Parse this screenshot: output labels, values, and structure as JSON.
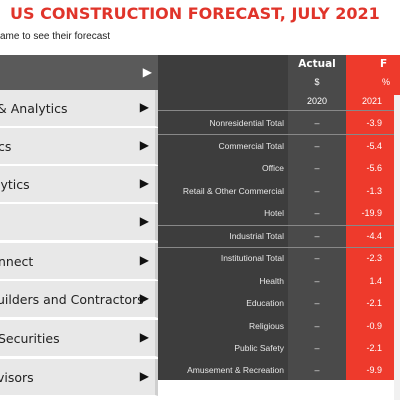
{
  "header": {
    "title": "US CONSTRUCTION FORECAST, JULY 2021",
    "subtitle": "ame to see their forecast"
  },
  "nav": {
    "items": [
      {
        "label": "& Analytics"
      },
      {
        "label": "cs"
      },
      {
        "label": "lytics"
      },
      {
        "label": ""
      },
      {
        "label": "nnect"
      },
      {
        "label": "uilders and Contractors"
      },
      {
        "label": "Securities"
      },
      {
        "label": "visors"
      }
    ]
  },
  "table": {
    "actual_header": "Actual",
    "actual_unit": "$",
    "actual_year": "2020",
    "forecast_header": "F",
    "forecast_unit": "%",
    "forecast_year": "2021",
    "rows": [
      {
        "label": "Nonresidential Total",
        "actual": "–",
        "forecast": "-3.9"
      },
      {
        "label": "Commercial Total",
        "actual": "–",
        "forecast": "-5.4"
      },
      {
        "label": "Office",
        "actual": "–",
        "forecast": "-5.6"
      },
      {
        "label": "Retail & Other Commercial",
        "actual": "–",
        "forecast": "-1.3"
      },
      {
        "label": "Hotel",
        "actual": "–",
        "forecast": "-19.9"
      },
      {
        "label": "Industrial Total",
        "actual": "–",
        "forecast": "-4.4"
      },
      {
        "label": "Institutional Total",
        "actual": "–",
        "forecast": "-2.3"
      },
      {
        "label": "Health",
        "actual": "–",
        "forecast": "1.4"
      },
      {
        "label": "Education",
        "actual": "–",
        "forecast": "-2.1"
      },
      {
        "label": "Religious",
        "actual": "–",
        "forecast": "-0.9"
      },
      {
        "label": "Public Safety",
        "actual": "–",
        "forecast": "-2.1"
      },
      {
        "label": "Amusement & Recreation",
        "actual": "–",
        "forecast": "-9.9"
      }
    ]
  },
  "icons": {
    "nav_arrow": "triangle-right-icon"
  },
  "colors": {
    "title": "#e0342a",
    "forecast_column": "#ee3a2c",
    "label_column": "#3d3d3d",
    "actual_column": "#4a4a4a"
  }
}
